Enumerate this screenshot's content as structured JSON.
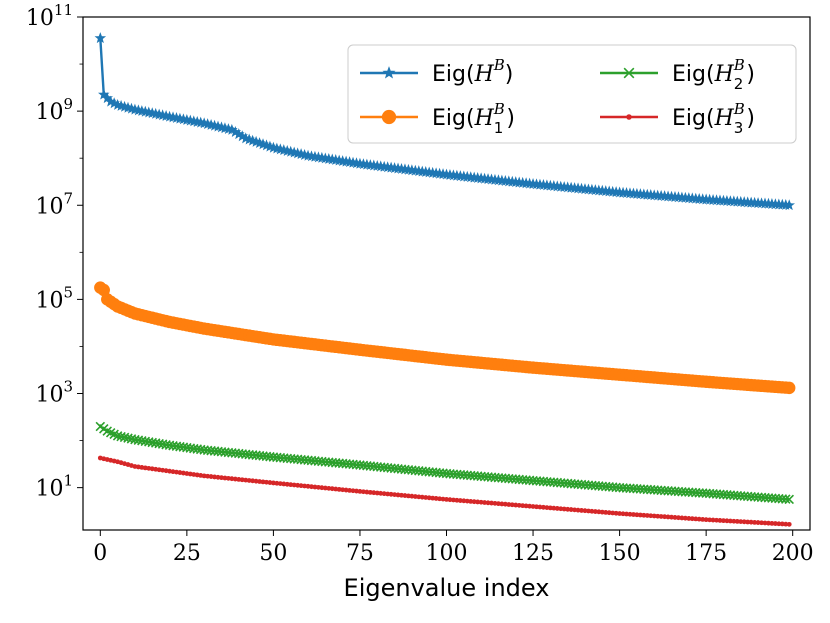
{
  "chart_data": {
    "type": "line",
    "xlabel": "Eigenvalue index",
    "ylabel": "",
    "xlim": [
      -5,
      205
    ],
    "ylim_log10": [
      0.1,
      11
    ],
    "yscale": "log",
    "x_ticks": [
      0,
      25,
      50,
      75,
      100,
      125,
      150,
      175,
      200
    ],
    "y_ticks": [
      {
        "base": "10",
        "exp": "11",
        "log10": 11
      },
      {
        "base": "10",
        "exp": "9",
        "log10": 9
      },
      {
        "base": "10",
        "exp": "7",
        "log10": 7
      },
      {
        "base": "10",
        "exp": "5",
        "log10": 5
      },
      {
        "base": "10",
        "exp": "3",
        "log10": 3
      },
      {
        "base": "10",
        "exp": "1",
        "log10": 1
      }
    ],
    "legend": {
      "placement": "top-right",
      "columns": 2
    },
    "series": [
      {
        "name": "Eig(H^B)",
        "label_prefix": "Eig(",
        "label_sym": "H",
        "label_sup": "B",
        "label_sub": "",
        "label_suffix": ")",
        "color": "#1f77b4",
        "marker": "star",
        "log10_points": [
          [
            0,
            10.55
          ],
          [
            1,
            9.35
          ],
          [
            3,
            9.2
          ],
          [
            5,
            9.13
          ],
          [
            10,
            9.03
          ],
          [
            20,
            8.88
          ],
          [
            30,
            8.74
          ],
          [
            38,
            8.6
          ],
          [
            42,
            8.42
          ],
          [
            50,
            8.22
          ],
          [
            60,
            8.05
          ],
          [
            75,
            7.88
          ],
          [
            100,
            7.65
          ],
          [
            125,
            7.45
          ],
          [
            150,
            7.27
          ],
          [
            175,
            7.12
          ],
          [
            199,
            7.0
          ]
        ]
      },
      {
        "name": "Eig(H_1^B)",
        "label_prefix": "Eig(",
        "label_sym": "H",
        "label_sup": "B",
        "label_sub": "1",
        "label_suffix": ")",
        "color": "#ff7f0e",
        "marker": "circle",
        "log10_points": [
          [
            0,
            5.25
          ],
          [
            1,
            5.2
          ],
          [
            2,
            5.0
          ],
          [
            5,
            4.85
          ],
          [
            10,
            4.7
          ],
          [
            20,
            4.52
          ],
          [
            30,
            4.38
          ],
          [
            50,
            4.15
          ],
          [
            75,
            3.93
          ],
          [
            100,
            3.72
          ],
          [
            125,
            3.55
          ],
          [
            150,
            3.4
          ],
          [
            175,
            3.25
          ],
          [
            199,
            3.12
          ]
        ]
      },
      {
        "name": "Eig(H_2^B)",
        "label_prefix": "Eig(",
        "label_sym": "H",
        "label_sup": "B",
        "label_sub": "2",
        "label_suffix": ")",
        "color": "#2ca02c",
        "marker": "x",
        "log10_points": [
          [
            0,
            2.3
          ],
          [
            2,
            2.2
          ],
          [
            5,
            2.1
          ],
          [
            10,
            2.02
          ],
          [
            20,
            1.9
          ],
          [
            30,
            1.8
          ],
          [
            50,
            1.65
          ],
          [
            75,
            1.48
          ],
          [
            100,
            1.3
          ],
          [
            125,
            1.15
          ],
          [
            150,
            1.0
          ],
          [
            175,
            0.88
          ],
          [
            199,
            0.75
          ]
        ]
      },
      {
        "name": "Eig(H_3^B)",
        "label_prefix": "Eig(",
        "label_sym": "H",
        "label_sup": "B",
        "label_sub": "3",
        "label_suffix": ")",
        "color": "#d62728",
        "marker": "dot",
        "log10_points": [
          [
            0,
            1.63
          ],
          [
            5,
            1.55
          ],
          [
            10,
            1.45
          ],
          [
            20,
            1.35
          ],
          [
            30,
            1.25
          ],
          [
            50,
            1.1
          ],
          [
            75,
            0.92
          ],
          [
            100,
            0.75
          ],
          [
            125,
            0.6
          ],
          [
            150,
            0.45
          ],
          [
            175,
            0.32
          ],
          [
            199,
            0.22
          ]
        ]
      }
    ]
  }
}
